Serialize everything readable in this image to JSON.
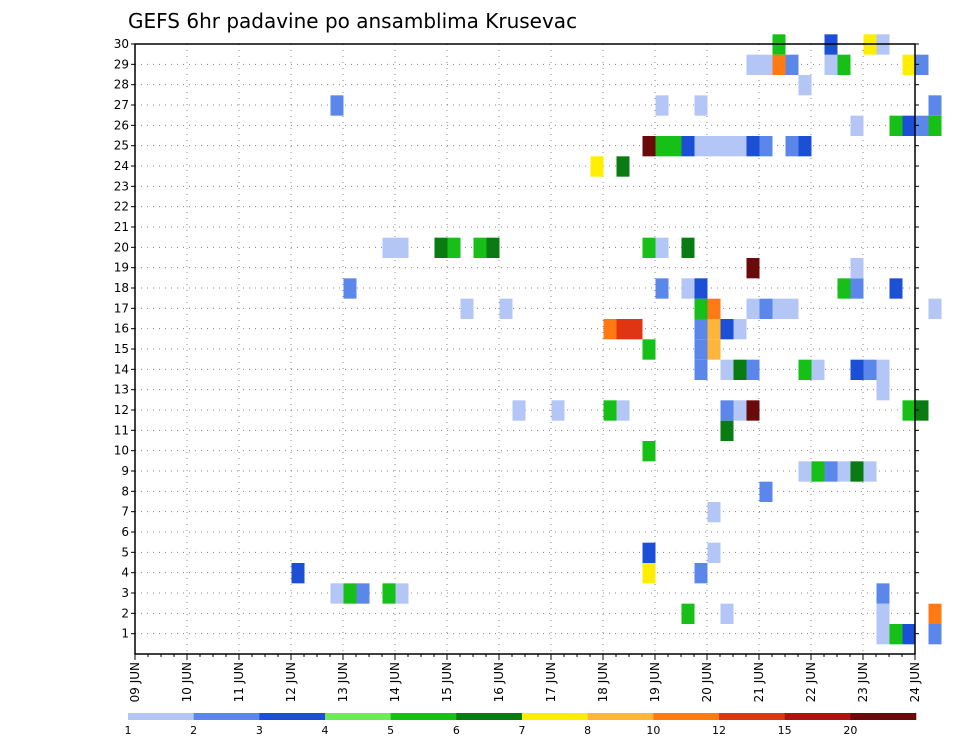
{
  "chart_data": {
    "type": "heatmap",
    "title": "GEFS 6hr padavine po ansamblima Krusevac",
    "x_tick_labels": [
      "09 JUN",
      "10 JUN",
      "11 JUN",
      "12 JUN",
      "13 JUN",
      "14 JUN",
      "15 JUN",
      "16 JUN",
      "17 JUN",
      "18 JUN",
      "19 JUN",
      "20 JUN",
      "21 JUN",
      "22 JUN",
      "23 JUN",
      "24 JUN"
    ],
    "x_steps_per_day": 4,
    "y_tick_labels": [
      "1",
      "2",
      "3",
      "4",
      "5",
      "6",
      "7",
      "8",
      "9",
      "10",
      "11",
      "12",
      "13",
      "14",
      "15",
      "16",
      "17",
      "18",
      "19",
      "20",
      "21",
      "22",
      "23",
      "24",
      "25",
      "26",
      "27",
      "28",
      "29",
      "30"
    ],
    "ylim": [
      0,
      30
    ],
    "grid": true,
    "legend": {
      "position": "bottom",
      "labels": [
        "1",
        "2",
        "3",
        "4",
        "5",
        "6",
        "7",
        "8",
        "10",
        "12",
        "15",
        "20"
      ],
      "colors": [
        "#b3c6f5",
        "#5b87eb",
        "#1a4fd6",
        "#6fe85a",
        "#16c016",
        "#0a7a12",
        "#ffee00",
        "#ffb43a",
        "#ff7a12",
        "#e03512",
        "#b3100e",
        "#6b0a0a"
      ]
    },
    "cells_note": "each cell: [member, step index (0 = 09 JUN 00h, 6h steps), color class index 0..11]",
    "cells": [
      [
        1,
        57,
        0
      ],
      [
        1,
        58,
        4
      ],
      [
        1,
        59,
        2
      ],
      [
        1,
        61,
        1
      ],
      [
        2,
        45,
        0
      ],
      [
        2,
        42,
        4
      ],
      [
        2,
        57,
        0
      ],
      [
        2,
        61,
        8
      ],
      [
        3,
        15,
        0
      ],
      [
        3,
        16,
        4
      ],
      [
        3,
        17,
        1
      ],
      [
        3,
        19,
        4
      ],
      [
        3,
        20,
        0
      ],
      [
        3,
        57,
        1
      ],
      [
        4,
        12,
        2
      ],
      [
        4,
        39,
        6
      ],
      [
        4,
        43,
        1
      ],
      [
        5,
        39,
        2
      ],
      [
        5,
        44,
        0
      ],
      [
        7,
        44,
        0
      ],
      [
        8,
        48,
        1
      ],
      [
        9,
        51,
        0
      ],
      [
        9,
        52,
        4
      ],
      [
        9,
        53,
        1
      ],
      [
        9,
        54,
        0
      ],
      [
        9,
        55,
        5
      ],
      [
        9,
        56,
        0
      ],
      [
        10,
        39,
        4
      ],
      [
        11,
        45,
        5
      ],
      [
        12,
        29,
        0
      ],
      [
        12,
        32,
        0
      ],
      [
        12,
        36,
        4
      ],
      [
        12,
        37,
        0
      ],
      [
        12,
        45,
        1
      ],
      [
        12,
        46,
        0
      ],
      [
        12,
        47,
        11
      ],
      [
        12,
        59,
        4
      ],
      [
        12,
        60,
        5
      ],
      [
        13,
        57,
        0
      ],
      [
        14,
        43,
        1
      ],
      [
        14,
        45,
        0
      ],
      [
        14,
        46,
        5
      ],
      [
        14,
        47,
        1
      ],
      [
        14,
        51,
        4
      ],
      [
        14,
        52,
        0
      ],
      [
        14,
        55,
        2
      ],
      [
        14,
        56,
        1
      ],
      [
        14,
        57,
        0
      ],
      [
        15,
        39,
        4
      ],
      [
        15,
        43,
        1
      ],
      [
        15,
        44,
        7
      ],
      [
        16,
        36,
        8
      ],
      [
        16,
        37,
        9
      ],
      [
        16,
        38,
        9
      ],
      [
        16,
        43,
        1
      ],
      [
        16,
        44,
        7
      ],
      [
        16,
        45,
        2
      ],
      [
        16,
        46,
        0
      ],
      [
        17,
        25,
        0
      ],
      [
        17,
        28,
        0
      ],
      [
        17,
        43,
        4
      ],
      [
        17,
        44,
        8
      ],
      [
        17,
        47,
        0
      ],
      [
        17,
        48,
        1
      ],
      [
        17,
        49,
        0
      ],
      [
        17,
        50,
        0
      ],
      [
        17,
        61,
        0
      ],
      [
        18,
        16,
        1
      ],
      [
        18,
        40,
        1
      ],
      [
        18,
        42,
        0
      ],
      [
        18,
        43,
        2
      ],
      [
        18,
        54,
        4
      ],
      [
        18,
        55,
        1
      ],
      [
        18,
        58,
        2
      ],
      [
        19,
        47,
        11
      ],
      [
        19,
        55,
        0
      ],
      [
        20,
        19,
        0
      ],
      [
        20,
        20,
        0
      ],
      [
        20,
        23,
        5
      ],
      [
        20,
        24,
        4
      ],
      [
        20,
        26,
        4
      ],
      [
        20,
        27,
        5
      ],
      [
        20,
        39,
        4
      ],
      [
        20,
        40,
        0
      ],
      [
        20,
        42,
        5
      ],
      [
        24,
        35,
        6
      ],
      [
        24,
        37,
        5
      ],
      [
        25,
        39,
        11
      ],
      [
        25,
        40,
        4
      ],
      [
        25,
        41,
        4
      ],
      [
        25,
        42,
        2
      ],
      [
        25,
        43,
        0
      ],
      [
        25,
        44,
        0
      ],
      [
        25,
        45,
        0
      ],
      [
        25,
        46,
        0
      ],
      [
        25,
        47,
        2
      ],
      [
        25,
        48,
        1
      ],
      [
        25,
        50,
        1
      ],
      [
        25,
        51,
        2
      ],
      [
        26,
        55,
        0
      ],
      [
        26,
        58,
        4
      ],
      [
        26,
        59,
        2
      ],
      [
        26,
        60,
        1
      ],
      [
        26,
        61,
        4
      ],
      [
        27,
        15,
        1
      ],
      [
        27,
        40,
        0
      ],
      [
        27,
        43,
        0
      ],
      [
        27,
        61,
        1
      ],
      [
        28,
        51,
        0
      ],
      [
        29,
        47,
        0
      ],
      [
        29,
        48,
        0
      ],
      [
        29,
        49,
        8
      ],
      [
        29,
        50,
        1
      ],
      [
        29,
        53,
        0
      ],
      [
        29,
        54,
        4
      ],
      [
        29,
        59,
        6
      ],
      [
        29,
        60,
        1
      ],
      [
        30,
        49,
        4
      ],
      [
        30,
        53,
        2
      ],
      [
        30,
        56,
        6
      ],
      [
        30,
        57,
        0
      ]
    ]
  }
}
